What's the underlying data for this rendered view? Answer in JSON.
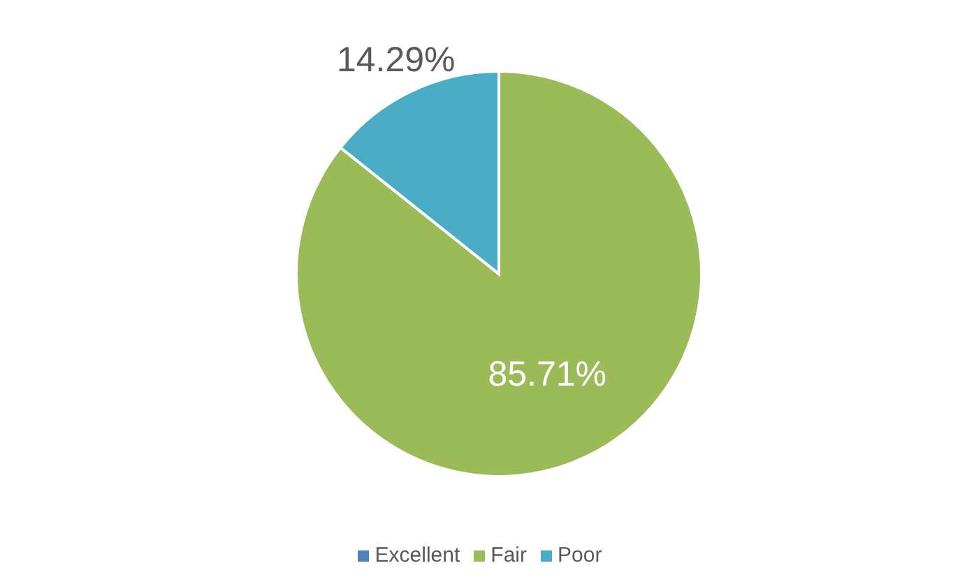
{
  "chart_data": {
    "type": "pie",
    "categories": [
      "Excellent",
      "Fair",
      "Poor"
    ],
    "values": [
      0,
      85.71,
      14.29
    ],
    "colors": [
      "#4f81bd",
      "#9bbb59",
      "#4bacc6"
    ],
    "value_labels": [
      null,
      "85.71%",
      "14.29%"
    ],
    "legend": "bottom"
  }
}
